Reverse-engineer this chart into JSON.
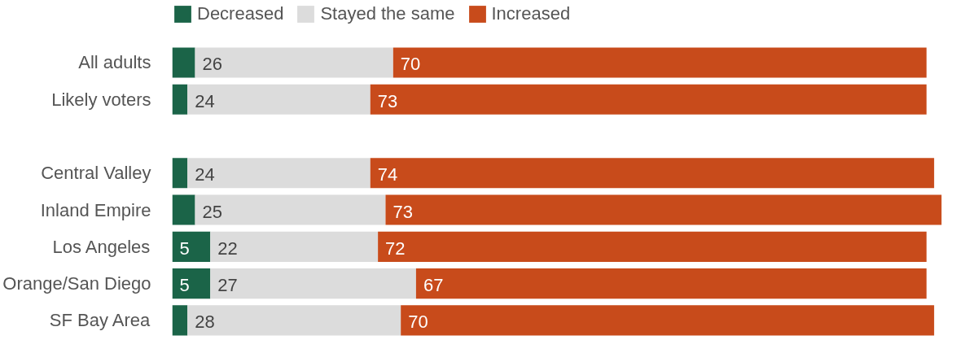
{
  "chart_data": {
    "type": "bar",
    "orientation": "horizontal",
    "stacked": true,
    "categories": [
      "All adults",
      "Likely voters",
      null,
      "Central Valley",
      "Inland Empire",
      "Los Angeles",
      "Orange/San Diego",
      "SF Bay Area"
    ],
    "series": [
      {
        "name": "Decreased",
        "color": "#1b6448",
        "values": [
          3,
          2,
          null,
          2,
          3,
          5,
          5,
          2
        ],
        "value_labels": [
          null,
          null,
          null,
          null,
          null,
          "5",
          "5",
          null
        ]
      },
      {
        "name": "Stayed the same",
        "color": "#dcdcdc",
        "values": [
          26,
          24,
          null,
          24,
          25,
          22,
          27,
          28
        ],
        "value_labels": [
          "26",
          "24",
          null,
          "24",
          "25",
          "22",
          "27",
          "28"
        ]
      },
      {
        "name": "Increased",
        "color": "#c84b1b",
        "values": [
          70,
          73,
          null,
          74,
          73,
          72,
          67,
          70
        ],
        "value_labels": [
          "70",
          "73",
          null,
          "74",
          "73",
          "72",
          "67",
          "70"
        ]
      }
    ],
    "xlim": [
      0,
      101
    ],
    "tick_labels": "y",
    "grid": false,
    "legend": "top left"
  }
}
